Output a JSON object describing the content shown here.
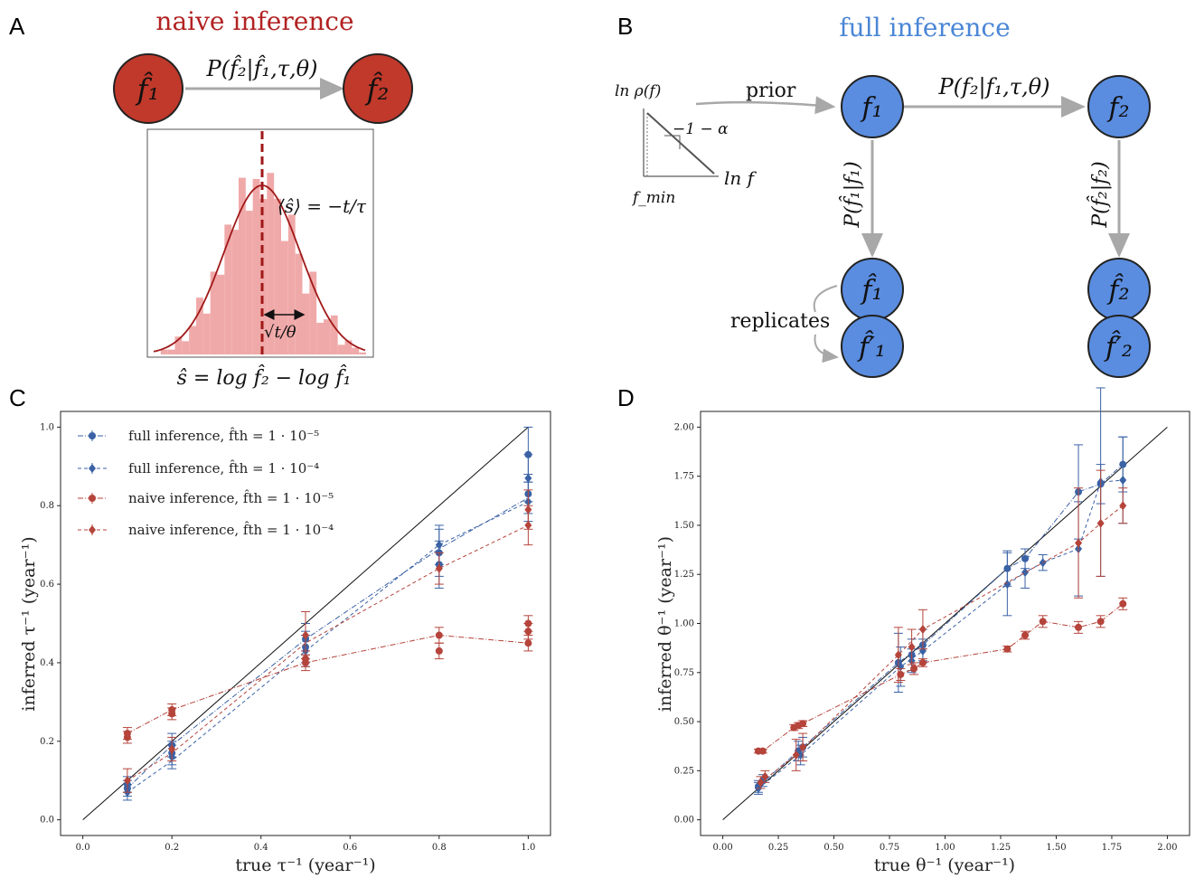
{
  "panels": {
    "A": {
      "letter": "A",
      "title": "naive inference",
      "node1": "f̂₁",
      "node2": "f̂₂",
      "edge_label": "P(f̂₂|f̂₁,τ,θ)",
      "mean_label": "⟨ŝ⟩ = −t/τ",
      "width_label": "√t/θ",
      "xlabel": "ŝ = log f̂₂ − log f̂₁"
    },
    "B": {
      "letter": "B",
      "title": "full inference",
      "prior_label": "prior",
      "axis_y": "ln ρ(f)",
      "axis_x": "ln f",
      "slope_label": "−1 − α",
      "fmin_label": "f_min",
      "node_f1": "f₁",
      "node_f2": "f₂",
      "node_f1hat": "f̂₁",
      "node_f1hat_p": "f̂′₁",
      "node_f2hat": "f̂₂",
      "node_f2hat_p": "f̂′₂",
      "edge_top": "P(f₂|f₁,τ,θ)",
      "edge_left": "P(f̂₁|f₁)",
      "edge_right": "P(f̂₂|f₂)",
      "replicates_label": "replicates"
    }
  },
  "legend": [
    "full inference, f̂th = 1 · 10⁻⁵",
    "full inference, f̂th = 1 · 10⁻⁴",
    "naive inference, f̂th = 1 · 10⁻⁵",
    "naive inference, f̂th = 1 · 10⁻⁴"
  ],
  "colors": {
    "blue": "#3a62a5",
    "red": "#b5443b",
    "node_blue": "#5a8de0",
    "node_red": "#c0392b",
    "hist": "#f0a9a9"
  },
  "chart_data": [
    {
      "id": "C",
      "letter": "C",
      "type": "scatter",
      "xlabel": "true τ⁻¹ (year⁻¹)",
      "ylabel": "inferred τ⁻¹ (year⁻¹)",
      "xlim": [
        -0.05,
        1.05
      ],
      "ylim": [
        -0.04,
        1.04
      ],
      "xticks": [
        0.0,
        0.2,
        0.4,
        0.6,
        0.8,
        1.0
      ],
      "yticks": [
        0.0,
        0.2,
        0.4,
        0.6,
        0.8,
        1.0
      ],
      "tick_labels": [
        "0.0",
        "0.2",
        "0.4",
        "0.6",
        "0.8",
        "1.0"
      ],
      "diagonal": true,
      "legend_position": "top-left",
      "series": [
        {
          "name": "full inference, f̂th = 1 · 10⁻⁵",
          "color": "blue",
          "marker": "circle",
          "style": "dashdot",
          "x": [
            0.1,
            0.1,
            0.2,
            0.2,
            0.5,
            0.5,
            0.8,
            0.8,
            1.0,
            1.0
          ],
          "y": [
            0.08,
            0.09,
            0.17,
            0.19,
            0.46,
            0.44,
            0.68,
            0.65,
            0.93,
            0.83
          ],
          "err": [
            0.02,
            0.02,
            0.03,
            0.03,
            0.04,
            0.04,
            0.06,
            0.06,
            0.07,
            0.05
          ],
          "line": [
            [
              0.1,
              0.08
            ],
            [
              0.2,
              0.19
            ],
            [
              0.5,
              0.46
            ],
            [
              0.8,
              0.69
            ],
            [
              1.0,
              0.82
            ]
          ]
        },
        {
          "name": "full inference, f̂th = 1 · 10⁻⁴",
          "color": "blue",
          "marker": "diamond",
          "style": "dashed",
          "x": [
            0.1,
            0.2,
            0.5,
            0.8,
            1.0,
            1.0
          ],
          "y": [
            0.07,
            0.16,
            0.43,
            0.7,
            0.87,
            0.81
          ],
          "err": [
            0.02,
            0.03,
            0.04,
            0.05,
            0.06,
            0.05
          ],
          "line": [
            [
              0.1,
              0.07
            ],
            [
              0.2,
              0.15
            ],
            [
              0.5,
              0.43
            ],
            [
              0.8,
              0.7
            ],
            [
              1.0,
              0.81
            ]
          ]
        },
        {
          "name": "naive inference, f̂th = 1 · 10⁻⁵",
          "color": "red",
          "marker": "circle",
          "style": "dashdot",
          "x": [
            0.1,
            0.1,
            0.2,
            0.2,
            0.5,
            0.5,
            0.8,
            0.8,
            1.0,
            1.0,
            1.0
          ],
          "y": [
            0.21,
            0.22,
            0.27,
            0.28,
            0.4,
            0.41,
            0.43,
            0.47,
            0.45,
            0.48,
            0.5
          ],
          "err": [
            0.015,
            0.015,
            0.015,
            0.015,
            0.02,
            0.02,
            0.02,
            0.02,
            0.02,
            0.02,
            0.02
          ],
          "line": [
            [
              0.1,
              0.22
            ],
            [
              0.2,
              0.28
            ],
            [
              0.5,
              0.4
            ],
            [
              0.8,
              0.47
            ],
            [
              1.0,
              0.45
            ]
          ]
        },
        {
          "name": "naive inference, f̂th = 1 · 10⁻⁴",
          "color": "red",
          "marker": "diamond",
          "style": "dashed",
          "x": [
            0.1,
            0.2,
            0.5,
            0.8,
            1.0,
            1.0
          ],
          "y": [
            0.1,
            0.18,
            0.47,
            0.64,
            0.79,
            0.75
          ],
          "err": [
            0.03,
            0.03,
            0.06,
            0.04,
            0.05,
            0.05
          ],
          "line": [
            [
              0.1,
              0.1
            ],
            [
              0.2,
              0.17
            ],
            [
              0.5,
              0.45
            ],
            [
              0.8,
              0.64
            ],
            [
              1.0,
              0.75
            ]
          ]
        }
      ]
    },
    {
      "id": "D",
      "letter": "D",
      "type": "scatter",
      "xlabel": "true θ⁻¹ (year⁻¹)",
      "ylabel": "inferred θ⁻¹ (year⁻¹)",
      "xlim": [
        -0.1,
        2.1
      ],
      "ylim": [
        -0.08,
        2.08
      ],
      "xticks": [
        0.0,
        0.25,
        0.5,
        0.75,
        1.0,
        1.25,
        1.5,
        1.75,
        2.0
      ],
      "yticks": [
        0.0,
        0.25,
        0.5,
        0.75,
        1.0,
        1.25,
        1.5,
        1.75,
        2.0
      ],
      "tick_labels": [
        "0.00",
        "0.25",
        "0.50",
        "0.75",
        "1.00",
        "1.25",
        "1.50",
        "1.75",
        "2.00"
      ],
      "diagonal": true,
      "series": [
        {
          "name": "full inference, f̂th = 1 · 10⁻⁵",
          "color": "blue",
          "marker": "circle",
          "style": "dashdot",
          "x": [
            0.16,
            0.18,
            0.34,
            0.36,
            0.79,
            0.85,
            0.9,
            1.28,
            1.36,
            1.6,
            1.7,
            1.8
          ],
          "y": [
            0.17,
            0.2,
            0.35,
            0.37,
            0.8,
            0.84,
            0.89,
            1.28,
            1.33,
            1.67,
            1.71,
            1.81
          ],
          "err": [
            0.03,
            0.03,
            0.05,
            0.05,
            0.15,
            0.08,
            0.08,
            0.09,
            0.05,
            0.24,
            0.1,
            0.14
          ],
          "line": [
            [
              0.16,
              0.17
            ],
            [
              0.34,
              0.35
            ],
            [
              0.79,
              0.8
            ],
            [
              0.9,
              0.89
            ],
            [
              1.28,
              1.28
            ],
            [
              1.36,
              1.33
            ],
            [
              1.6,
              1.67
            ],
            [
              1.7,
              1.71
            ],
            [
              1.8,
              1.81
            ]
          ]
        },
        {
          "name": "full inference, f̂th = 1 · 10⁻⁴",
          "color": "blue",
          "marker": "diamond",
          "style": "dashed",
          "x": [
            0.16,
            0.35,
            0.8,
            0.85,
            0.9,
            1.28,
            1.36,
            1.44,
            1.6,
            1.7,
            1.8
          ],
          "y": [
            0.16,
            0.33,
            0.78,
            0.81,
            0.86,
            1.2,
            1.26,
            1.31,
            1.38,
            1.72,
            1.73
          ],
          "err": [
            0.03,
            0.05,
            0.1,
            0.06,
            0.06,
            0.16,
            0.08,
            0.04,
            0.24,
            0.48,
            0.22
          ],
          "line": [
            [
              0.16,
              0.16
            ],
            [
              0.35,
              0.33
            ],
            [
              0.8,
              0.78
            ],
            [
              0.9,
              0.86
            ],
            [
              1.28,
              1.2
            ],
            [
              1.36,
              1.26
            ],
            [
              1.44,
              1.31
            ],
            [
              1.6,
              1.38
            ],
            [
              1.7,
              1.72
            ],
            [
              1.8,
              1.73
            ]
          ]
        },
        {
          "name": "naive inference, f̂th = 1 · 10⁻⁵",
          "color": "red",
          "marker": "circle",
          "style": "dashdot",
          "x": [
            0.16,
            0.18,
            0.32,
            0.34,
            0.36,
            0.8,
            0.86,
            0.9,
            1.28,
            1.36,
            1.44,
            1.6,
            1.7,
            1.8
          ],
          "y": [
            0.35,
            0.35,
            0.47,
            0.48,
            0.49,
            0.74,
            0.77,
            0.8,
            0.87,
            0.94,
            1.01,
            0.98,
            1.01,
            1.1
          ],
          "err": [
            0.01,
            0.01,
            0.015,
            0.015,
            0.015,
            0.03,
            0.03,
            0.02,
            0.015,
            0.02,
            0.03,
            0.03,
            0.03,
            0.03
          ],
          "line": [
            [
              0.16,
              0.35
            ],
            [
              0.18,
              0.35
            ],
            [
              0.32,
              0.47
            ],
            [
              0.36,
              0.49
            ],
            [
              0.8,
              0.74
            ],
            [
              0.86,
              0.77
            ],
            [
              0.9,
              0.8
            ],
            [
              1.28,
              0.87
            ],
            [
              1.36,
              0.94
            ],
            [
              1.44,
              1.01
            ],
            [
              1.6,
              0.98
            ],
            [
              1.7,
              1.01
            ],
            [
              1.8,
              1.1
            ]
          ]
        },
        {
          "name": "naive inference, f̂th = 1 · 10⁻⁴",
          "color": "red",
          "marker": "diamond",
          "style": "dashed",
          "x": [
            0.17,
            0.19,
            0.33,
            0.36,
            0.79,
            0.85,
            0.9,
            1.6,
            1.7,
            1.8
          ],
          "y": [
            0.19,
            0.22,
            0.33,
            0.37,
            0.84,
            0.88,
            0.97,
            1.41,
            1.51,
            1.6
          ],
          "err": [
            0.03,
            0.03,
            0.08,
            0.07,
            0.14,
            0.09,
            0.1,
            0.28,
            0.27,
            0.09
          ],
          "line": [
            [
              0.17,
              0.19
            ],
            [
              0.33,
              0.33
            ],
            [
              0.79,
              0.84
            ],
            [
              0.9,
              0.97
            ],
            [
              1.6,
              1.41
            ],
            [
              1.7,
              1.51
            ],
            [
              1.8,
              1.6
            ]
          ]
        }
      ]
    }
  ]
}
